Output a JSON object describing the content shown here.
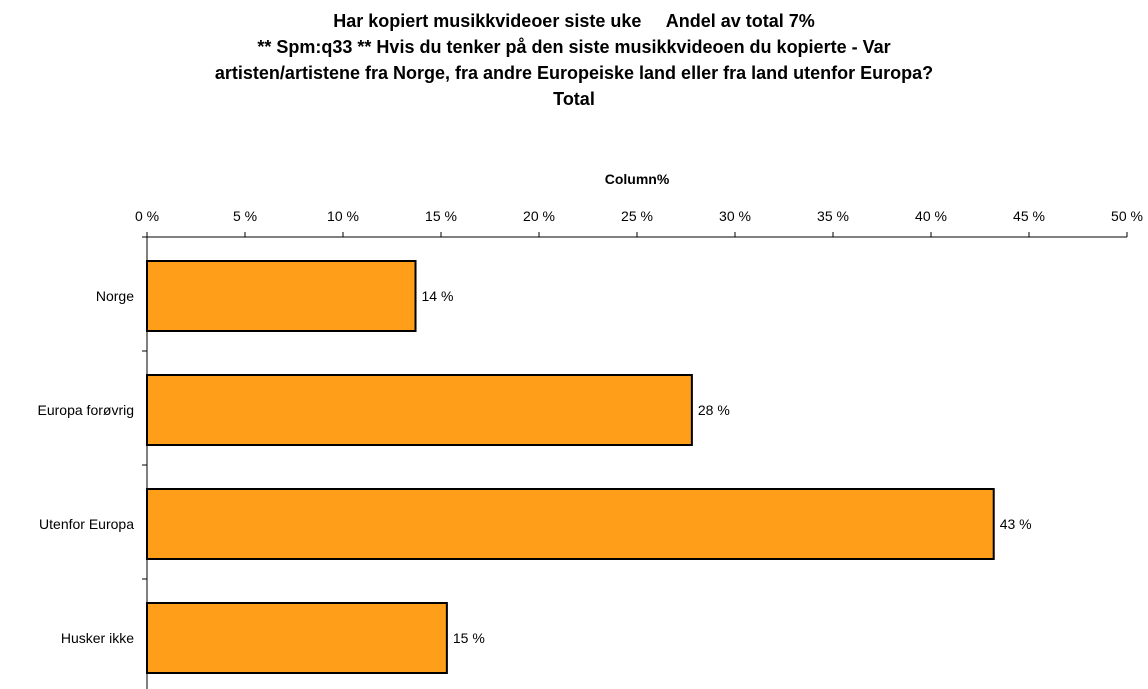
{
  "title_lines": [
    "Har kopiert musikkvideoer siste uke     Andel av total 7%",
    "** Spm:q33 ** Hvis du tenker på den siste musikkvideoen du kopierte - Var",
    "artisten/artistene fra Norge, fra andre Europeiske land eller fra land utenfor Europa?",
    "Total"
  ],
  "chart_data": {
    "type": "bar",
    "orientation": "horizontal",
    "xlabel": "Column%",
    "xaxis_position": "top",
    "xlim": [
      0,
      50
    ],
    "xticks": [
      0,
      5,
      10,
      15,
      20,
      25,
      30,
      35,
      40,
      45,
      50
    ],
    "xtick_labels": [
      "0 %",
      "5 %",
      "10 %",
      "15 %",
      "20 %",
      "25 %",
      "30 %",
      "35 %",
      "40 %",
      "45 %",
      "50 %"
    ],
    "categories": [
      "Norge",
      "Europa forøvrig",
      "Utenfor Europa",
      "Husker ikke"
    ],
    "values": [
      13.7,
      27.8,
      43.2,
      15.3
    ],
    "value_labels": [
      "14 %",
      "28 %",
      "43 %",
      "15 %"
    ],
    "bar_color": "#FF9E18",
    "bar_edge_color": "#000000",
    "grid": false,
    "legend": "none"
  }
}
